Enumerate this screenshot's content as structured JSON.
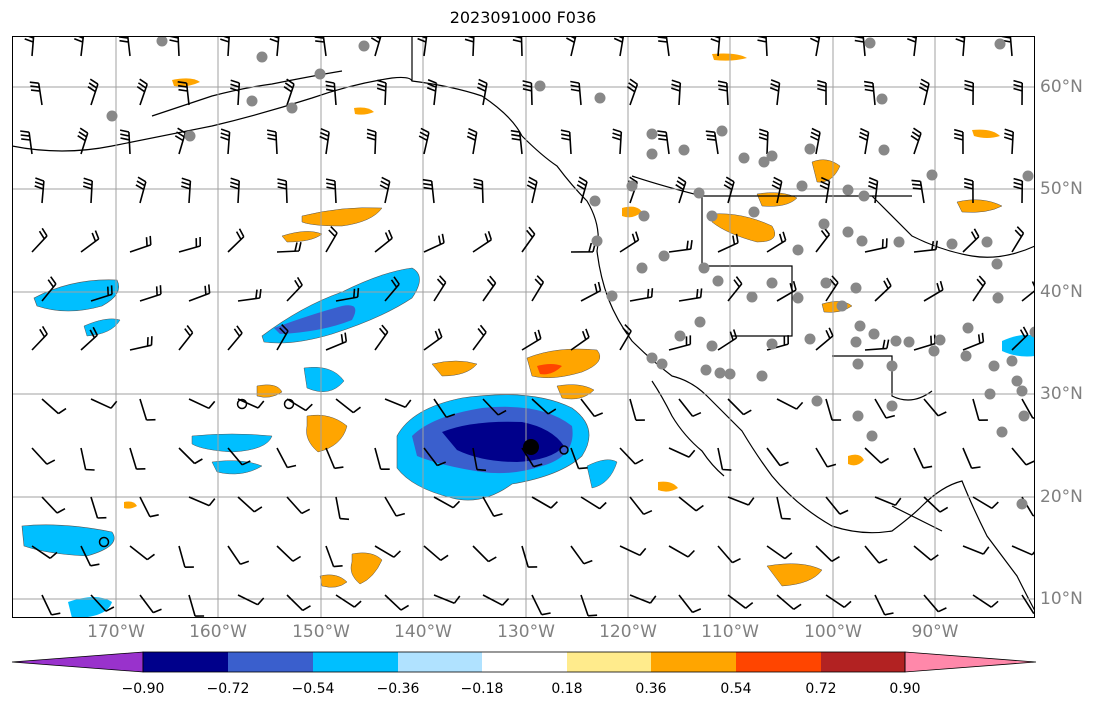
{
  "title": "2023091000 F036",
  "map": {
    "grid_lines": true,
    "lon_labels": [
      "170°W",
      "160°W",
      "150°W",
      "140°W",
      "130°W",
      "120°W",
      "110°W",
      "100°W",
      "90°W"
    ],
    "lat_labels": [
      "60°N",
      "50°N",
      "40°N",
      "30°N",
      "20°N",
      "10°N"
    ],
    "label_color": "#808080",
    "grid_color": "#a0a0a0",
    "station_color": "#888888"
  },
  "colorbar": {
    "ticks": [
      "−0.90",
      "−0.72",
      "−0.54",
      "−0.36",
      "−0.18",
      "0.18",
      "0.36",
      "0.54",
      "0.72",
      "0.90"
    ],
    "colors": [
      "#9932cc",
      "#00008b",
      "#3a5fcd",
      "#00bfff",
      "#b0e2ff",
      "#ffffff",
      "#ffeb8c",
      "#ffa500",
      "#ff4500",
      "#b22222",
      "#ff88aa"
    ],
    "extend": "both"
  }
}
